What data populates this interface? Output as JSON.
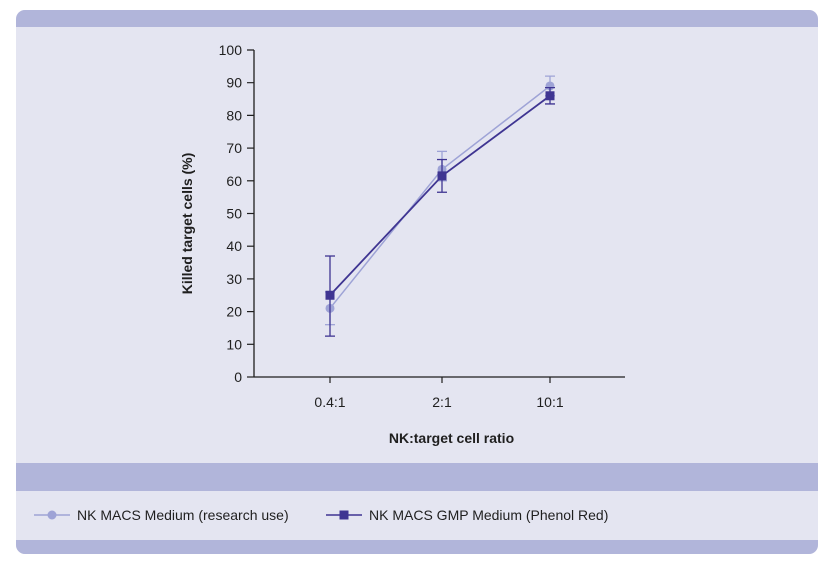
{
  "chart_data": {
    "type": "line",
    "title": "",
    "xlabel": "NK:target cell ratio",
    "ylabel": "Killed target cells (%)",
    "categories": [
      "0.4:1",
      "2:1",
      "10:1"
    ],
    "ylim": [
      0,
      100
    ],
    "yticks": [
      "0",
      "10",
      "20",
      "30",
      "40",
      "50",
      "60",
      "70",
      "80",
      "90",
      "100"
    ],
    "grid": false,
    "legend_position": "bottom",
    "series": [
      {
        "name": "NK MACS Medium (research use)",
        "marker": "circle",
        "color": "#9ea3d6",
        "values": [
          21,
          63.5,
          89
        ],
        "error_low": [
          16,
          60,
          86
        ],
        "error_high": [
          26,
          69,
          92
        ]
      },
      {
        "name": "NK MACS GMP Medium (Phenol Red)",
        "marker": "square",
        "color": "#3f3592",
        "values": [
          25,
          61.5,
          86
        ],
        "error_low": [
          12.5,
          56.5,
          83.5
        ],
        "error_high": [
          37,
          66.5,
          88.5
        ]
      }
    ]
  }
}
